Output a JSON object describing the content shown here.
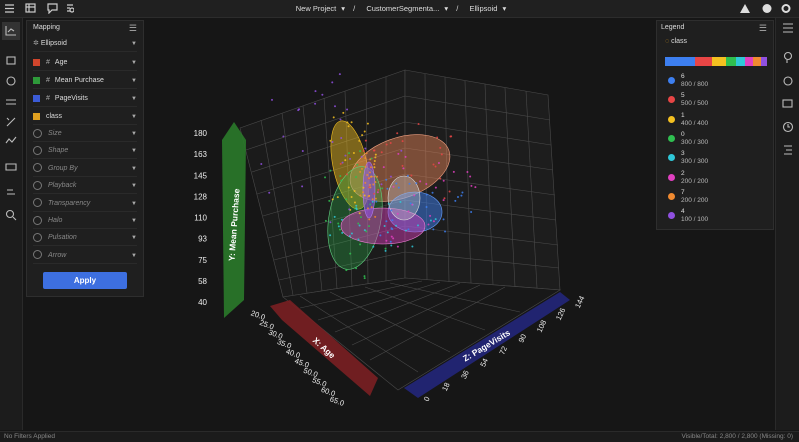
{
  "topbar": {
    "breadcrumb": [
      "New Project",
      "CustomerSegmenta...",
      "Ellipsoid"
    ],
    "separator": "/"
  },
  "mapping": {
    "title": "Mapping",
    "chart_type": "Ellipsoid",
    "axes": [
      {
        "type": "#",
        "label": "Age",
        "color": "#d0452c"
      },
      {
        "type": "#",
        "label": "Mean Purchase",
        "color": "#2e9a3a"
      },
      {
        "type": "#",
        "label": "PageVisits",
        "color": "#3b5bd6"
      },
      {
        "label": "class",
        "color": "#e0a020"
      }
    ],
    "options": [
      "Size",
      "Shape",
      "Group By",
      "Playback",
      "Transparency",
      "Halo",
      "Pulsation",
      "Arrow"
    ],
    "apply": "Apply"
  },
  "plot": {
    "y_title": "Y: Mean Purchase",
    "x_title": "X: Age",
    "z_title": "Z: PageVisits",
    "y_ticks": [
      180,
      163,
      145,
      128,
      110,
      93,
      75,
      58,
      40
    ],
    "x_ticks": [
      "20.0",
      "25.0",
      "30.0",
      "35.0",
      "40.0",
      "45.0",
      "50.0",
      "55.0",
      "60.0",
      "65.0"
    ],
    "z_ticks": [
      0,
      18,
      36,
      54,
      72,
      90,
      108,
      126,
      144
    ]
  },
  "legend": {
    "title": "Legend",
    "field": "class",
    "entries": [
      {
        "label": "6",
        "count": "800 / 800",
        "color": "#3d7ff0"
      },
      {
        "label": "5",
        "count": "500 / 500",
        "color": "#e84545"
      },
      {
        "label": "1",
        "count": "400 / 400",
        "color": "#f4c020"
      },
      {
        "label": "0",
        "count": "300 / 300",
        "color": "#2fbf50"
      },
      {
        "label": "3",
        "count": "300 / 300",
        "color": "#2fc8d8"
      },
      {
        "label": "2",
        "count": "200 / 200",
        "color": "#e040c0"
      },
      {
        "label": "7",
        "count": "200 / 200",
        "color": "#f08a30"
      },
      {
        "label": "4",
        "count": "100 / 100",
        "color": "#9050e0"
      }
    ]
  },
  "status": {
    "filters": "No Filters Applied",
    "visible": "Visible/Total: 2,800 / 2,800 (Missing: 0)"
  }
}
